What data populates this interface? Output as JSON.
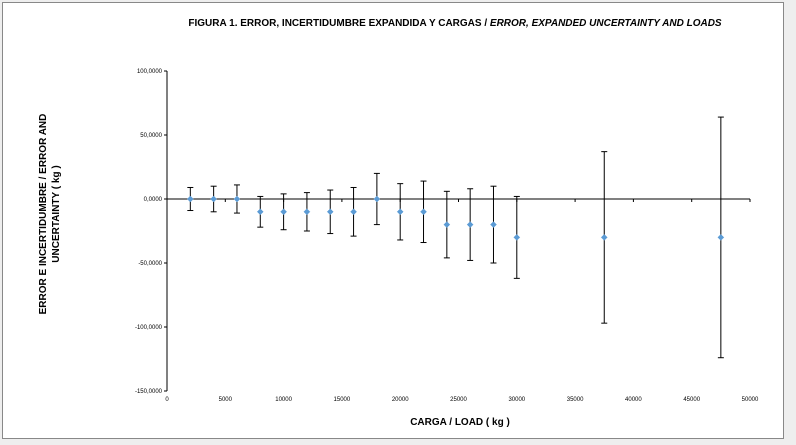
{
  "chart_data": {
    "type": "scatter",
    "title_main": "FIGURA 1.  ERROR, INCERTIDUMBRE EXPANDIDA Y CARGAS / ",
    "title_italic": "ERROR, EXPANDED UNCERTAINTY AND LOADS",
    "xlabel": "CARGA / LOAD ( kg )",
    "ylabel": "ERROR E INCERTIDUMBRE / ERROR AND UNCERTAINTY ( kg )",
    "xlim": [
      0,
      50000
    ],
    "ylim": [
      -150,
      100
    ],
    "xticks": [
      0,
      5000,
      10000,
      15000,
      20000,
      25000,
      30000,
      35000,
      40000,
      45000,
      50000
    ],
    "xtick_labels": [
      "0",
      "5000",
      "10000",
      "15000",
      "20000",
      "25000",
      "30000",
      "35000",
      "40000",
      "45000",
      "50000"
    ],
    "yticks": [
      100,
      50,
      0,
      -50,
      -100,
      -150
    ],
    "ytick_labels": [
      "100,0000",
      "50,0000",
      "0,0000",
      "-50,0000",
      "-100,0000",
      "-150,0000"
    ],
    "marker_color": "#5b9bd5",
    "points": [
      {
        "x": 2000,
        "y": 0,
        "upper": 9,
        "lower": -9
      },
      {
        "x": 4000,
        "y": 0,
        "upper": 10,
        "lower": -10
      },
      {
        "x": 6000,
        "y": 0,
        "upper": 11,
        "lower": -11
      },
      {
        "x": 8000,
        "y": -10,
        "upper": 2,
        "lower": -22
      },
      {
        "x": 10000,
        "y": -10,
        "upper": 4,
        "lower": -24
      },
      {
        "x": 12000,
        "y": -10,
        "upper": 5,
        "lower": -25
      },
      {
        "x": 14000,
        "y": -10,
        "upper": 7,
        "lower": -27
      },
      {
        "x": 16000,
        "y": -10,
        "upper": 9,
        "lower": -29
      },
      {
        "x": 18000,
        "y": 0,
        "upper": 20,
        "lower": -20
      },
      {
        "x": 20000,
        "y": -10,
        "upper": 12,
        "lower": -32
      },
      {
        "x": 22000,
        "y": -10,
        "upper": 14,
        "lower": -34
      },
      {
        "x": 24000,
        "y": -20,
        "upper": 6,
        "lower": -46
      },
      {
        "x": 26000,
        "y": -20,
        "upper": 8,
        "lower": -48
      },
      {
        "x": 28000,
        "y": -20,
        "upper": 10,
        "lower": -50
      },
      {
        "x": 30000,
        "y": -30,
        "upper": 2,
        "lower": -62
      },
      {
        "x": 37500,
        "y": -30,
        "upper": 37,
        "lower": -97
      },
      {
        "x": 47500,
        "y": -30,
        "upper": 64,
        "lower": -124
      }
    ]
  }
}
